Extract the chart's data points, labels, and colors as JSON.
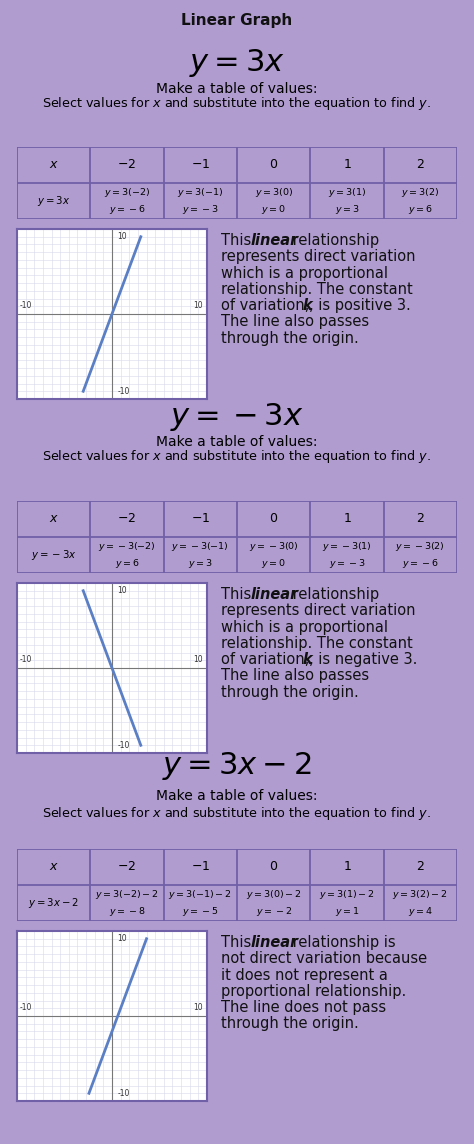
{
  "title": "Linear Graph",
  "title_bg": "#c8b4e8",
  "outer_bg": "#b09ccf",
  "inner_bg": "#ffffff",
  "section_border": "#7060a8",
  "sections": [
    {
      "equation_latex": "$y = 3x$",
      "subtitle1": "Make a table of values:",
      "subtitle2": "Select values for $x$ and substitute into the equation to find $y$.",
      "table_header": [
        "$x$",
        "$-2$",
        "$-1$",
        "$0$",
        "$1$",
        "$2$"
      ],
      "table_col0": "$y = 3x$",
      "table_row_top": [
        "$y = 3(-2)$",
        "$y = 3(-1)$",
        "$y = 3(0)$",
        "$y = 3(1)$",
        "$y = 3(2)$"
      ],
      "table_row_bot": [
        "$y = -6$",
        "$y = -3$",
        "$y = 0$",
        "$y = 3$",
        "$y = 6$"
      ],
      "slope": 3,
      "intercept": 0,
      "desc_lines": [
        [
          [
            "This ",
            false
          ],
          [
            "linear",
            true
          ],
          [
            " relationship",
            false
          ]
        ],
        [
          [
            "represents direct variation",
            false
          ]
        ],
        [
          [
            "which is a proportional",
            false
          ]
        ],
        [
          [
            "relationship. The constant",
            false
          ]
        ],
        [
          [
            "of variation, ",
            false
          ],
          [
            "k",
            true
          ],
          [
            ", is positive 3.",
            false
          ]
        ],
        [
          [
            "The line also passes",
            false
          ]
        ],
        [
          [
            "through the origin.",
            false
          ]
        ]
      ]
    },
    {
      "equation_latex": "$y = -3x$",
      "subtitle1": "Make a table of values:",
      "subtitle2": "Select values for $x$ and substitute into the equation to find $y$.",
      "table_header": [
        "$x$",
        "$-2$",
        "$-1$",
        "$0$",
        "$1$",
        "$2$"
      ],
      "table_col0": "$y = -3x$",
      "table_row_top": [
        "$y = -3(-2)$",
        "$y = -3(-1)$",
        "$y = -3(0)$",
        "$y = -3(1)$",
        "$y = -3(2)$"
      ],
      "table_row_bot": [
        "$y = 6$",
        "$y = 3$",
        "$y = 0$",
        "$y = -3$",
        "$y = -6$"
      ],
      "slope": -3,
      "intercept": 0,
      "desc_lines": [
        [
          [
            "This ",
            false
          ],
          [
            "linear",
            true
          ],
          [
            " relationship",
            false
          ]
        ],
        [
          [
            "represents direct variation",
            false
          ]
        ],
        [
          [
            "which is a proportional",
            false
          ]
        ],
        [
          [
            "relationship. The constant",
            false
          ]
        ],
        [
          [
            "of variation, ",
            false
          ],
          [
            "k",
            true
          ],
          [
            ", is negative 3.",
            false
          ]
        ],
        [
          [
            "The line also passes",
            false
          ]
        ],
        [
          [
            "through the origin.",
            false
          ]
        ]
      ]
    },
    {
      "equation_latex": "$y = 3x - 2$",
      "subtitle1": "Make a table of values:",
      "subtitle2": "Select values for $x$ and substitute into the equation to find $y$.",
      "table_header": [
        "$x$",
        "$-2$",
        "$-1$",
        "$0$",
        "$1$",
        "$2$"
      ],
      "table_col0": "$y = 3x - 2$",
      "table_row_top": [
        "$y = 3(-2) - 2$",
        "$y = 3(-1) - 2$",
        "$y = 3(0) - 2$",
        "$y = 3(1) - 2$",
        "$y = 3(2) - 2$"
      ],
      "table_row_bot": [
        "$y = -8$",
        "$y = -5$",
        "$y = -2$",
        "$y = 1$",
        "$y = 4$"
      ],
      "slope": 3,
      "intercept": -2,
      "desc_lines": [
        [
          [
            "This ",
            false
          ],
          [
            "linear",
            true
          ],
          [
            " relationship is",
            false
          ]
        ],
        [
          [
            "not direct variation because",
            false
          ]
        ],
        [
          [
            "it does not represent a",
            false
          ]
        ],
        [
          [
            "proportional relationship.",
            false
          ]
        ],
        [
          [
            "The line does not pass",
            false
          ]
        ],
        [
          [
            "through the origin.",
            false
          ]
        ]
      ]
    }
  ],
  "line_color": "#5b7fc4",
  "table_border_color": "#7060a8"
}
